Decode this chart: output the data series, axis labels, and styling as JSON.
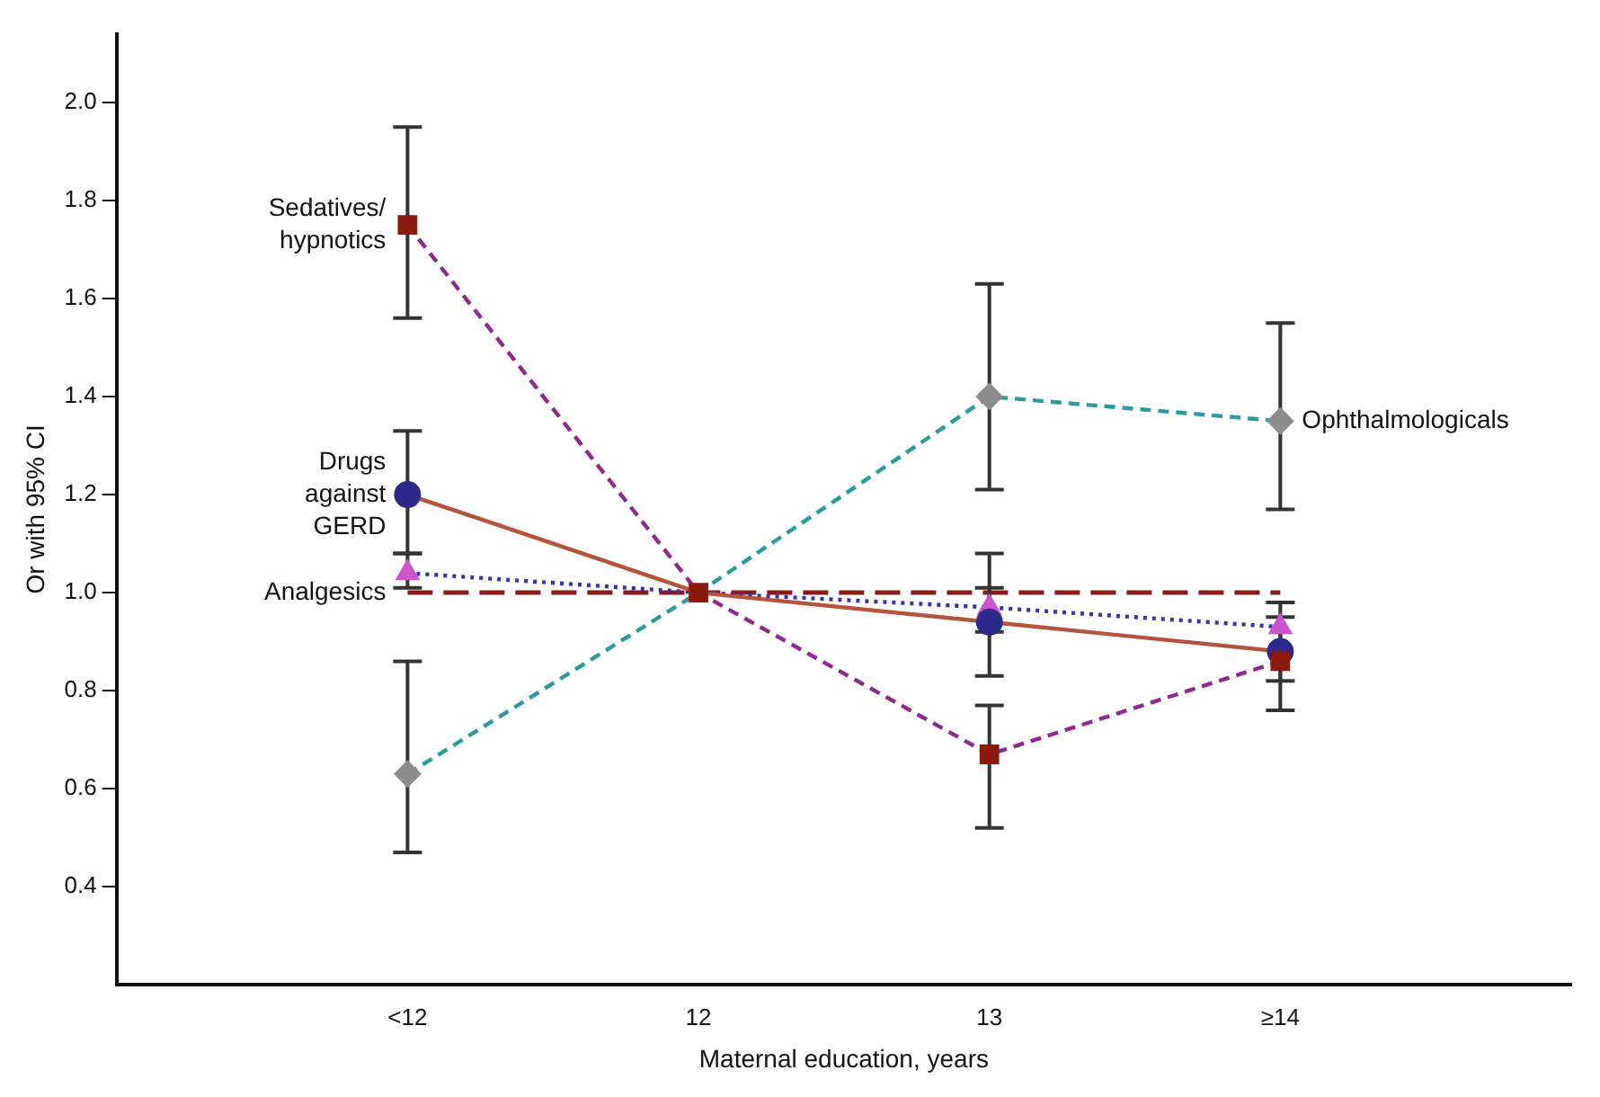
{
  "chart_data": {
    "type": "line",
    "xlabel": "Maternal education, years",
    "ylabel": "Or with 95% CI",
    "categories": [
      "<12",
      "12",
      "13",
      "≥14"
    ],
    "series": [
      {
        "type": "scatter",
        "color": "#8b1a0e",
        "marker": "square",
        "values": [
          1.75,
          1.0,
          0.67,
          0.86
        ],
        "errors": [
          [
            1.56,
            1.95
          ],
          null,
          [
            0.52,
            0.77
          ],
          [
            0.76,
            0.98
          ]
        ]
      },
      {
        "color": "#8e2a8e",
        "marker": "none",
        "line_style": "dashed",
        "values": [
          1.75,
          1.0,
          0.67,
          0.86
        ]
      },
      {
        "type": "scatter",
        "color": "#2e2a8c",
        "marker": "circle",
        "values": [
          1.2,
          null,
          0.94,
          0.88
        ],
        "errors": [
          [
            1.08,
            1.33
          ],
          null,
          [
            0.83,
            1.08
          ],
          [
            0.82,
            0.95
          ]
        ]
      },
      {
        "color": "#b5533c",
        "marker": "none",
        "line_style": "solid",
        "values": [
          1.2,
          1.0,
          0.94,
          0.88
        ]
      },
      {
        "type": "scatter",
        "color": "#cc55cc",
        "marker": "triangle",
        "values": [
          1.04,
          null,
          0.97,
          0.93
        ],
        "errors": [
          [
            1.01,
            1.08
          ],
          null,
          [
            0.92,
            1.01
          ],
          null
        ]
      },
      {
        "color": "#3333aa",
        "marker": "none",
        "line_style": "dotted",
        "values": [
          1.04,
          1.0,
          0.97,
          0.93
        ]
      },
      {
        "type": "scatter",
        "color": "#8c8c8c",
        "marker": "diamond",
        "values": [
          0.63,
          null,
          1.4,
          1.35
        ],
        "errors": [
          [
            0.47,
            0.86
          ],
          null,
          [
            1.21,
            1.63
          ],
          [
            1.17,
            1.55
          ]
        ]
      },
      {
        "color": "#2a9a9a",
        "marker": "none",
        "line_style": "dashed",
        "values": [
          0.63,
          1.0,
          1.4,
          1.35
        ]
      }
    ],
    "ref_lines": [
      {
        "axis": "y",
        "value": 1.0,
        "color": "#8b1a1a",
        "line_style": "dashed"
      }
    ],
    "annotations": [
      {
        "text": "Sedatives/\nhypnotics",
        "x": "<12",
        "y": 1.75
      },
      {
        "text": "Drugs\nagainst\nGERD",
        "x": "<12",
        "y": 1.2
      },
      {
        "text": "Analgesics",
        "x": "<12",
        "y": 1.0
      },
      {
        "text": "Ophthalmologicals",
        "x": "≥14",
        "y": 1.35
      }
    ],
    "ylim": [
      0.2,
      2.14
    ],
    "yticks": [
      {
        "value": 0.4,
        "label": "0.4"
      },
      {
        "value": 0.6,
        "label": "0.6"
      },
      {
        "value": 0.8,
        "label": "0.8"
      },
      {
        "value": 1.0,
        "label": "1.0"
      },
      {
        "value": 1.2,
        "label": "1.2"
      },
      {
        "value": 1.4,
        "label": "1.4"
      },
      {
        "value": 1.6,
        "label": "1.6"
      },
      {
        "value": 1.8,
        "label": "1.8"
      },
      {
        "value": 2.0,
        "label": "2.0"
      }
    ],
    "grid": false,
    "legend": false
  }
}
